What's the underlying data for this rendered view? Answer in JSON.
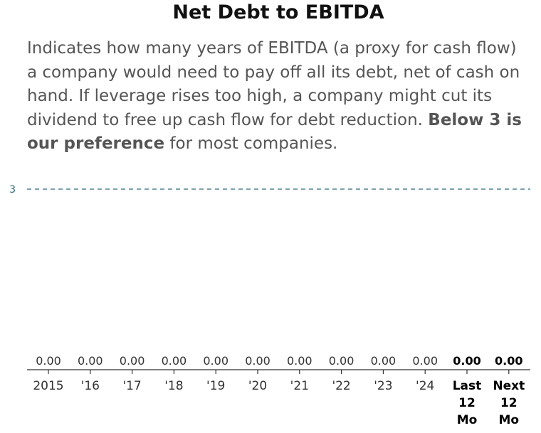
{
  "header": {
    "title": "Net Debt to EBITDA",
    "description_main": "Indicates how many years of EBITDA (a proxy for cash flow) a company would need to pay off all its debt, net of cash on hand. If leverage rises too high, a company might cut its dividend to free up cash flow for debt reduction. ",
    "description_bold": "Below 3 is our preference",
    "description_end": " for most companies."
  },
  "colors": {
    "threshold": "#2f6b7c",
    "axis": "#333333",
    "text": "#555555"
  },
  "chart_data": {
    "type": "bar",
    "title": "Net Debt to EBITDA",
    "categories": [
      "2015",
      "'16",
      "'17",
      "'18",
      "'19",
      "'20",
      "'21",
      "'22",
      "'23",
      "'24",
      "Last 12 Mo",
      "Next 12 Mo"
    ],
    "values": [
      0.0,
      0.0,
      0.0,
      0.0,
      0.0,
      0.0,
      0.0,
      0.0,
      0.0,
      0.0,
      0.0,
      0.0
    ],
    "value_labels": [
      "0.00",
      "0.00",
      "0.00",
      "0.00",
      "0.00",
      "0.00",
      "0.00",
      "0.00",
      "0.00",
      "0.00",
      "0.00",
      "0.00"
    ],
    "bold_categories": [
      "Last 12 Mo",
      "Next 12 Mo"
    ],
    "threshold": {
      "value": 3,
      "label": "3",
      "style": "dashed"
    },
    "ylim": [
      0,
      3
    ],
    "xlabel": "",
    "ylabel": "",
    "grid": false
  }
}
